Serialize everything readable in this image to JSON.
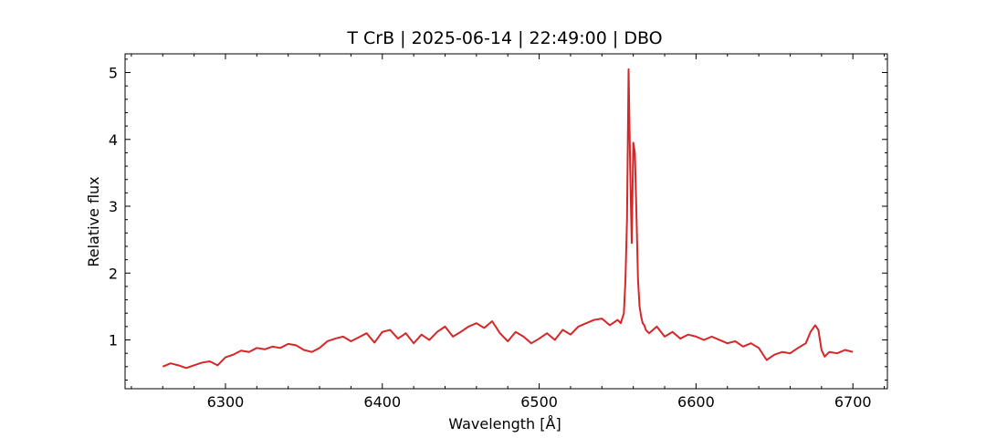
{
  "chart_data": {
    "type": "line",
    "title": "T CrB | 2025-06-14 | 22:49:00 | DBO",
    "xlabel": "Wavelength [Å]",
    "ylabel": "Relative flux",
    "xlim": [
      6236,
      6722
    ],
    "ylim": [
      0.27,
      5.28
    ],
    "xticks": [
      6300,
      6400,
      6500,
      6600,
      6700
    ],
    "yticks": [
      1,
      2,
      3,
      4,
      5
    ],
    "grid": false,
    "line_color": "#d62728",
    "series": [
      {
        "x": [
          6260,
          6265,
          6270,
          6275,
          6280,
          6285,
          6290,
          6295,
          6300,
          6305,
          6310,
          6315,
          6320,
          6325,
          6330,
          6335,
          6340,
          6345,
          6350,
          6355,
          6360,
          6365,
          6370,
          6375,
          6380,
          6385,
          6390,
          6395,
          6400,
          6405,
          6410,
          6415,
          6420,
          6425,
          6430,
          6435,
          6440,
          6445,
          6450,
          6455,
          6460,
          6465,
          6470,
          6475,
          6480,
          6485,
          6490,
          6495,
          6500,
          6505,
          6510,
          6515,
          6520,
          6525,
          6530,
          6535,
          6540,
          6545,
          6550,
          6552,
          6554,
          6555,
          6556,
          6557,
          6558,
          6559,
          6560,
          6561,
          6562,
          6563,
          6564,
          6565,
          6566,
          6567,
          6568,
          6570,
          6575,
          6580,
          6585,
          6590,
          6595,
          6600,
          6605,
          6610,
          6615,
          6620,
          6625,
          6630,
          6635,
          6640,
          6645,
          6650,
          6655,
          6660,
          6665,
          6670,
          6673,
          6676,
          6678,
          6680,
          6682,
          6685,
          6690,
          6695,
          6700
        ],
        "y": [
          0.6,
          0.65,
          0.62,
          0.58,
          0.62,
          0.66,
          0.68,
          0.62,
          0.74,
          0.78,
          0.84,
          0.82,
          0.88,
          0.86,
          0.9,
          0.88,
          0.94,
          0.92,
          0.85,
          0.82,
          0.88,
          0.98,
          1.02,
          1.05,
          0.98,
          1.04,
          1.1,
          0.96,
          1.12,
          1.15,
          1.02,
          1.1,
          0.95,
          1.08,
          1.0,
          1.12,
          1.2,
          1.05,
          1.12,
          1.2,
          1.25,
          1.18,
          1.28,
          1.1,
          0.98,
          1.12,
          1.05,
          0.95,
          1.02,
          1.1,
          1.0,
          1.15,
          1.08,
          1.2,
          1.25,
          1.3,
          1.32,
          1.22,
          1.3,
          1.25,
          1.4,
          1.9,
          2.8,
          5.05,
          3.6,
          2.45,
          3.95,
          3.8,
          2.9,
          1.9,
          1.5,
          1.35,
          1.25,
          1.22,
          1.15,
          1.1,
          1.2,
          1.05,
          1.12,
          1.02,
          1.08,
          1.05,
          1.0,
          1.05,
          1.0,
          0.95,
          0.98,
          0.9,
          0.95,
          0.88,
          0.7,
          0.78,
          0.82,
          0.8,
          0.88,
          0.95,
          1.12,
          1.22,
          1.15,
          0.85,
          0.75,
          0.82,
          0.8,
          0.85,
          0.82
        ]
      }
    ]
  }
}
